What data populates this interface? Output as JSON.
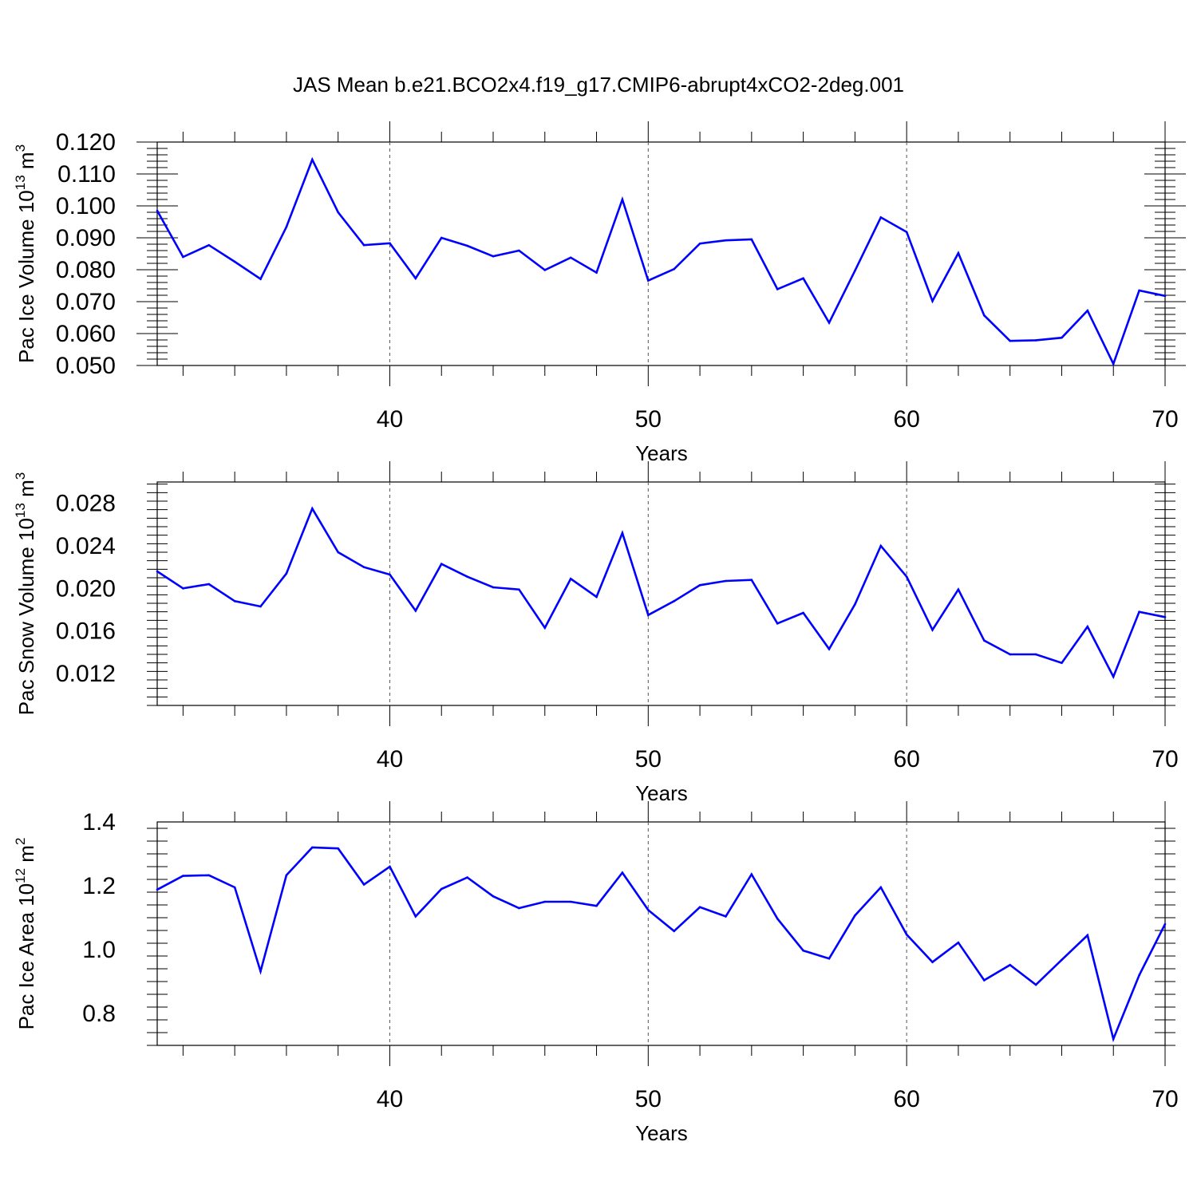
{
  "title": "JAS Mean b.e21.BCO2x4.f19_g17.CMIP6-abrupt4xCO2-2deg.001",
  "line_color": "#0000ff",
  "chart_data": [
    {
      "type": "line",
      "ylabel_main": "Pac Ice Volume 10",
      "ylabel_exp": "13",
      "ylabel_unit": " m",
      "ylabel_unit_exp": "3",
      "xlabel": "Years",
      "xlim": [
        31,
        70
      ],
      "ylim": [
        0.05,
        0.12
      ],
      "x_ticks": [
        "40",
        "50",
        "60",
        "70"
      ],
      "y_ticks": [
        "0.050",
        "0.060",
        "0.070",
        "0.080",
        "0.090",
        "0.100",
        "0.110",
        "0.120"
      ],
      "grid_x": [
        40,
        50,
        60
      ],
      "x": [
        31,
        32,
        33,
        34,
        35,
        36,
        37,
        38,
        39,
        40,
        41,
        42,
        43,
        44,
        45,
        46,
        47,
        48,
        49,
        50,
        51,
        52,
        53,
        54,
        55,
        56,
        57,
        58,
        59,
        60,
        61,
        62,
        63,
        64,
        65,
        66,
        67,
        68,
        69,
        70
      ],
      "values": [
        0.0985,
        0.084,
        0.0877,
        0.0825,
        0.0771,
        0.0934,
        0.1145,
        0.098,
        0.0877,
        0.0883,
        0.0773,
        0.09,
        0.0875,
        0.0842,
        0.086,
        0.0799,
        0.0838,
        0.0791,
        0.102,
        0.0766,
        0.0802,
        0.0882,
        0.0892,
        0.0895,
        0.0739,
        0.0773,
        0.0634,
        0.0797,
        0.0964,
        0.0918,
        0.0702,
        0.0852,
        0.0657,
        0.0577,
        0.0579,
        0.0587,
        0.0672,
        0.0505,
        0.0735,
        0.0718
      ]
    },
    {
      "type": "line",
      "ylabel_main": "Pac Snow Volume 10",
      "ylabel_exp": "13",
      "ylabel_unit": " m",
      "ylabel_unit_exp": "3",
      "xlabel": "Years",
      "xlim": [
        31,
        70
      ],
      "ylim": [
        0.009,
        0.03
      ],
      "x_ticks": [
        "40",
        "50",
        "60",
        "70"
      ],
      "y_ticks": [
        "0.012",
        "0.016",
        "0.020",
        "0.024",
        "0.028"
      ],
      "grid_x": [
        40,
        50,
        60
      ],
      "x": [
        31,
        32,
        33,
        34,
        35,
        36,
        37,
        38,
        39,
        40,
        41,
        42,
        43,
        44,
        45,
        46,
        47,
        48,
        49,
        50,
        51,
        52,
        53,
        54,
        55,
        56,
        57,
        58,
        59,
        60,
        61,
        62,
        63,
        64,
        65,
        66,
        67,
        68,
        69,
        70
      ],
      "values": [
        0.0216,
        0.02,
        0.0204,
        0.0188,
        0.0183,
        0.0214,
        0.0275,
        0.0234,
        0.022,
        0.0213,
        0.0179,
        0.0223,
        0.0211,
        0.0201,
        0.0199,
        0.0163,
        0.0209,
        0.0192,
        0.0252,
        0.0175,
        0.0188,
        0.0203,
        0.0207,
        0.0208,
        0.0167,
        0.0177,
        0.0143,
        0.0185,
        0.024,
        0.0211,
        0.0161,
        0.0199,
        0.0151,
        0.0138,
        0.0138,
        0.013,
        0.0164,
        0.0117,
        0.0178,
        0.0173
      ]
    },
    {
      "type": "line",
      "ylabel_main": "Pac Ice Area 10",
      "ylabel_exp": "12",
      "ylabel_unit": " m",
      "ylabel_unit_exp": "2",
      "xlabel": "Years",
      "xlim": [
        31,
        70
      ],
      "ylim": [
        0.7,
        1.4
      ],
      "x_ticks": [
        "40",
        "50",
        "60",
        "70"
      ],
      "y_ticks": [
        "0.8",
        "1.0",
        "1.2",
        "1.4"
      ],
      "grid_x": [
        40,
        50,
        60
      ],
      "x": [
        31,
        32,
        33,
        34,
        35,
        36,
        37,
        38,
        39,
        40,
        41,
        42,
        43,
        44,
        45,
        46,
        47,
        48,
        49,
        50,
        51,
        52,
        53,
        54,
        55,
        56,
        57,
        58,
        59,
        60,
        61,
        62,
        63,
        64,
        65,
        66,
        67,
        68,
        69,
        70
      ],
      "values": [
        1.188,
        1.231,
        1.233,
        1.195,
        0.932,
        1.233,
        1.32,
        1.317,
        1.204,
        1.26,
        1.104,
        1.19,
        1.226,
        1.167,
        1.13,
        1.15,
        1.15,
        1.137,
        1.241,
        1.124,
        1.058,
        1.133,
        1.104,
        1.236,
        1.097,
        0.997,
        0.972,
        1.107,
        1.195,
        1.047,
        0.961,
        1.022,
        0.904,
        0.952,
        0.89,
        0.968,
        1.045,
        0.72,
        0.92,
        1.08
      ]
    }
  ]
}
